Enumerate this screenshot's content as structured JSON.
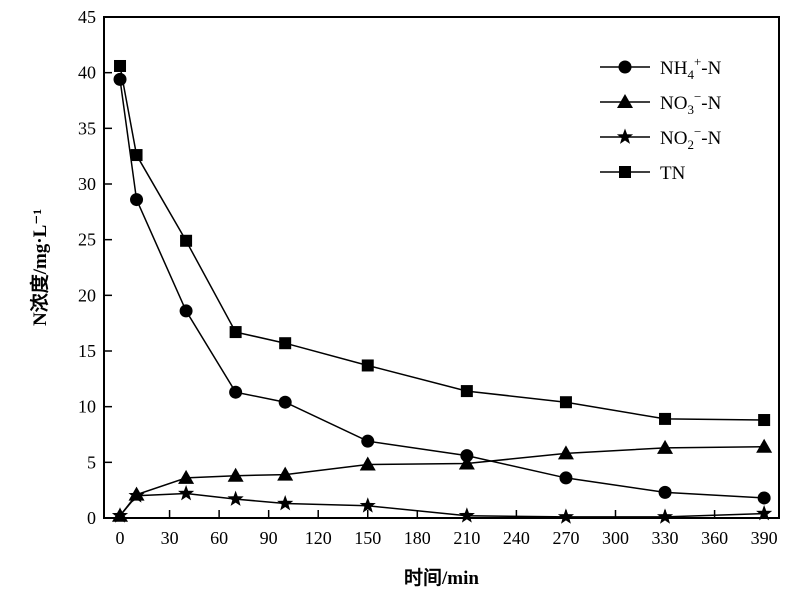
{
  "chart_data": {
    "type": "line",
    "title": "",
    "xlabel": "时间/min",
    "ylabel": "N浓度/mg·L⁻¹",
    "xlim": [
      -9.7,
      399
    ],
    "ylim": [
      0,
      45
    ],
    "xticks": [
      0,
      30,
      60,
      90,
      120,
      150,
      180,
      210,
      240,
      270,
      300,
      330,
      360,
      390
    ],
    "yticks": [
      0,
      5,
      10,
      15,
      20,
      25,
      30,
      35,
      40,
      45
    ],
    "grid": false,
    "legend_position": "top-right",
    "x": [
      0,
      10,
      40,
      70,
      100,
      150,
      210,
      270,
      330,
      390
    ],
    "series": [
      {
        "name": "NH4+-N",
        "label_main": "NH",
        "sub": "4",
        "sup": "+",
        "tail": "-N",
        "marker": "circle",
        "values": [
          39.4,
          28.6,
          18.6,
          11.3,
          10.4,
          6.9,
          5.6,
          3.6,
          2.3,
          1.8
        ]
      },
      {
        "name": "NO3−-N",
        "label_main": "NO",
        "sub": "3",
        "sup": "−",
        "tail": "-N",
        "marker": "triangle",
        "values": [
          0.2,
          2.1,
          3.6,
          3.8,
          3.9,
          4.8,
          4.9,
          5.8,
          6.3,
          6.4
        ]
      },
      {
        "name": "NO2−-N",
        "label_main": "NO",
        "sub": "2",
        "sup": "−",
        "tail": "-N",
        "marker": "star",
        "values": [
          0.2,
          2.0,
          2.2,
          1.7,
          1.3,
          1.1,
          0.2,
          0.1,
          0.1,
          0.4
        ]
      },
      {
        "name": "TN",
        "label_main": "TN",
        "sub": "",
        "sup": "",
        "tail": "",
        "marker": "square",
        "values": [
          40.6,
          32.6,
          24.9,
          16.7,
          15.7,
          13.7,
          11.4,
          10.4,
          8.9,
          8.8
        ]
      }
    ]
  }
}
